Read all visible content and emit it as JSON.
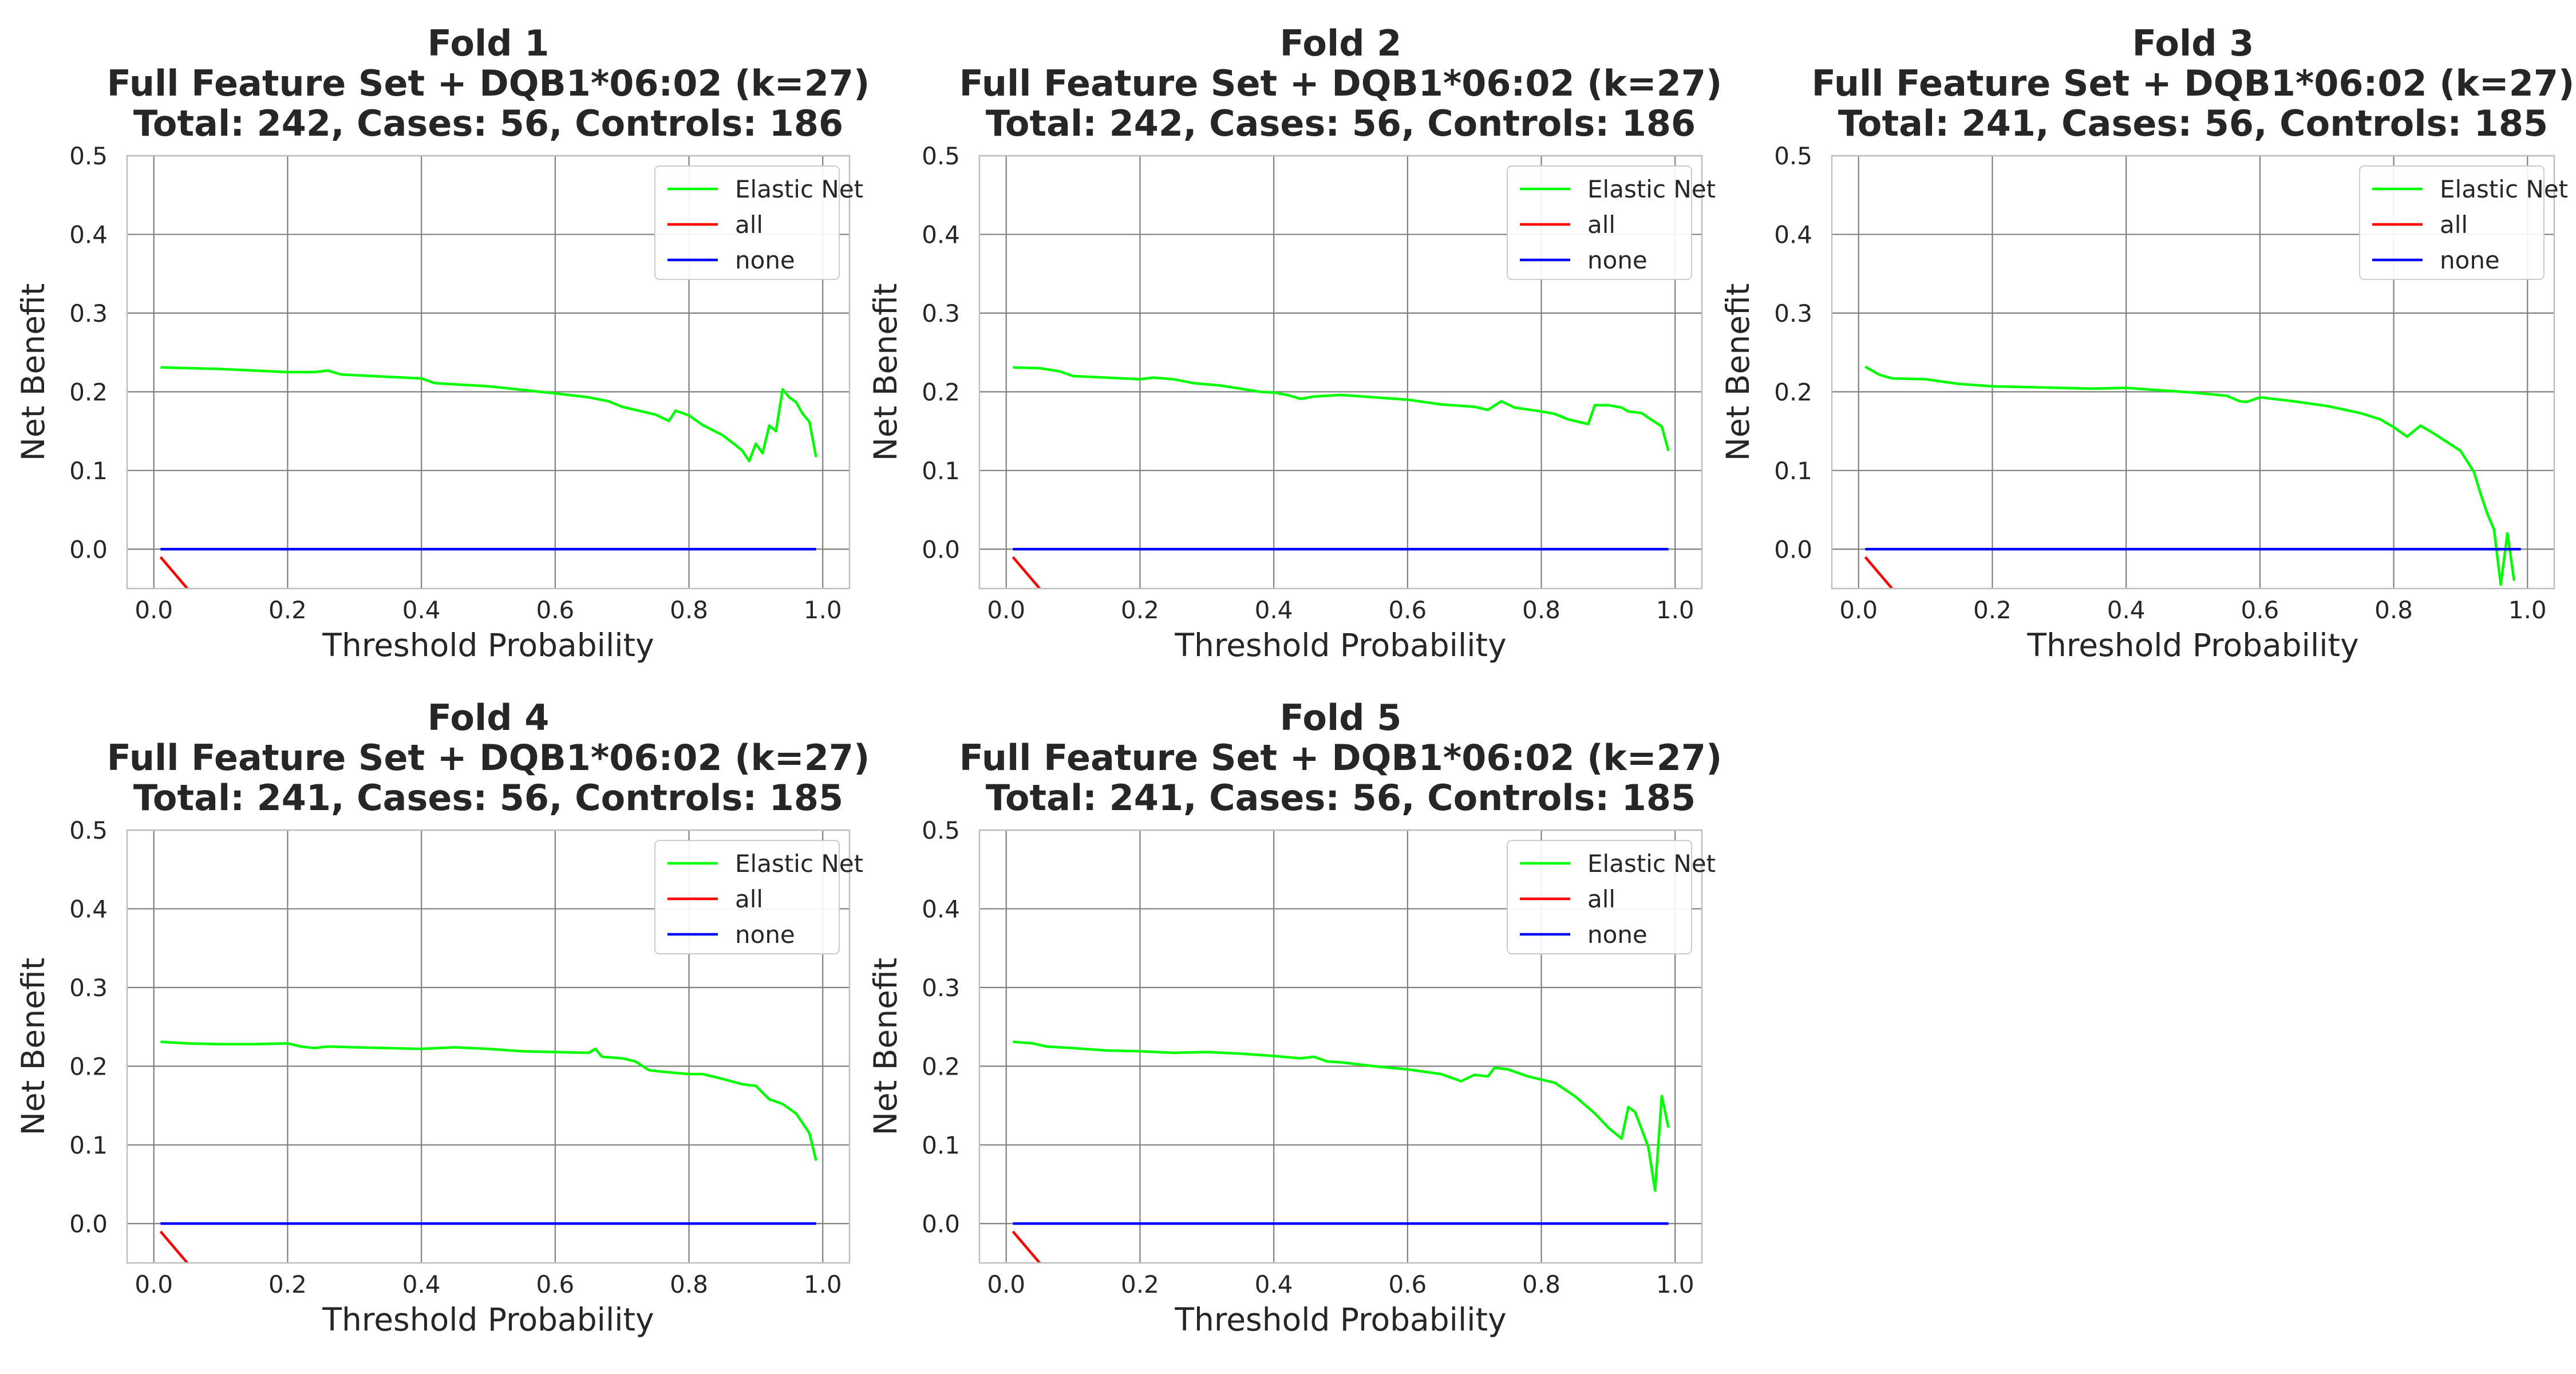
{
  "chart_data": [
    {
      "type": "line",
      "title_lines": [
        "Fold 1",
        "Full Feature Set + DQB1*06:02  (k=27)",
        "Total: 242, Cases: 56, Controls: 186"
      ],
      "xlabel": "Threshold Probability",
      "ylabel": "Net Benefit",
      "xlim": [
        -0.04,
        1.04
      ],
      "ylim": [
        -0.05,
        0.5
      ],
      "xticks": [
        "0.0",
        "0.2",
        "0.4",
        "0.6",
        "0.8",
        "1.0"
      ],
      "yticks": [
        "0.0",
        "0.1",
        "0.2",
        "0.3",
        "0.4",
        "0.5"
      ],
      "grid": true,
      "legend_position": "top-right",
      "series": [
        {
          "name": "Elastic Net",
          "color": "#00ff00",
          "x": [
            0.01,
            0.1,
            0.2,
            0.24,
            0.26,
            0.28,
            0.35,
            0.4,
            0.42,
            0.5,
            0.6,
            0.65,
            0.68,
            0.7,
            0.75,
            0.77,
            0.78,
            0.8,
            0.82,
            0.85,
            0.87,
            0.88,
            0.89,
            0.9,
            0.91,
            0.92,
            0.93,
            0.94,
            0.95,
            0.96,
            0.97,
            0.98,
            0.99
          ],
          "y": [
            0.231,
            0.229,
            0.225,
            0.225,
            0.227,
            0.222,
            0.219,
            0.217,
            0.211,
            0.207,
            0.198,
            0.193,
            0.188,
            0.181,
            0.171,
            0.163,
            0.176,
            0.17,
            0.158,
            0.145,
            0.132,
            0.125,
            0.112,
            0.134,
            0.122,
            0.157,
            0.15,
            0.203,
            0.193,
            0.187,
            0.172,
            0.162,
            0.117
          ]
        },
        {
          "name": "all",
          "color": "#ff0000",
          "x": [
            0.01,
            0.05
          ],
          "y": [
            -0.01,
            -0.05
          ]
        },
        {
          "name": "none",
          "color": "#0000ff",
          "x": [
            0.01,
            0.99
          ],
          "y": [
            0.0,
            0.0
          ]
        }
      ]
    },
    {
      "type": "line",
      "title_lines": [
        "Fold 2",
        "Full Feature Set + DQB1*06:02  (k=27)",
        "Total: 242, Cases: 56, Controls: 186"
      ],
      "xlabel": "Threshold Probability",
      "ylabel": "Net Benefit",
      "xlim": [
        -0.04,
        1.04
      ],
      "ylim": [
        -0.05,
        0.5
      ],
      "xticks": [
        "0.0",
        "0.2",
        "0.4",
        "0.6",
        "0.8",
        "1.0"
      ],
      "yticks": [
        "0.0",
        "0.1",
        "0.2",
        "0.3",
        "0.4",
        "0.5"
      ],
      "grid": true,
      "legend_position": "top-right",
      "series": [
        {
          "name": "Elastic Net",
          "color": "#00ff00",
          "x": [
            0.01,
            0.05,
            0.08,
            0.1,
            0.15,
            0.2,
            0.22,
            0.25,
            0.28,
            0.32,
            0.35,
            0.38,
            0.4,
            0.42,
            0.44,
            0.46,
            0.5,
            0.55,
            0.6,
            0.65,
            0.7,
            0.72,
            0.74,
            0.76,
            0.8,
            0.82,
            0.84,
            0.86,
            0.87,
            0.88,
            0.9,
            0.92,
            0.93,
            0.95,
            0.96,
            0.98,
            0.99
          ],
          "y": [
            0.231,
            0.23,
            0.226,
            0.22,
            0.218,
            0.216,
            0.218,
            0.216,
            0.211,
            0.208,
            0.204,
            0.2,
            0.199,
            0.196,
            0.191,
            0.194,
            0.196,
            0.193,
            0.19,
            0.184,
            0.181,
            0.177,
            0.188,
            0.18,
            0.175,
            0.172,
            0.165,
            0.161,
            0.159,
            0.183,
            0.183,
            0.18,
            0.175,
            0.173,
            0.167,
            0.156,
            0.125
          ]
        },
        {
          "name": "all",
          "color": "#ff0000",
          "x": [
            0.01,
            0.05
          ],
          "y": [
            -0.01,
            -0.05
          ]
        },
        {
          "name": "none",
          "color": "#0000ff",
          "x": [
            0.01,
            0.99
          ],
          "y": [
            0.0,
            0.0
          ]
        }
      ]
    },
    {
      "type": "line",
      "title_lines": [
        "Fold 3",
        "Full Feature Set + DQB1*06:02  (k=27)",
        "Total: 241, Cases: 56, Controls: 185"
      ],
      "xlabel": "Threshold Probability",
      "ylabel": "Net Benefit",
      "xlim": [
        -0.04,
        1.04
      ],
      "ylim": [
        -0.05,
        0.5
      ],
      "xticks": [
        "0.0",
        "0.2",
        "0.4",
        "0.6",
        "0.8",
        "1.0"
      ],
      "yticks": [
        "0.0",
        "0.1",
        "0.2",
        "0.3",
        "0.4",
        "0.5"
      ],
      "grid": true,
      "legend_position": "top-right",
      "series": [
        {
          "name": "Elastic Net",
          "color": "#00ff00",
          "x": [
            0.01,
            0.03,
            0.05,
            0.1,
            0.15,
            0.2,
            0.25,
            0.3,
            0.35,
            0.4,
            0.45,
            0.5,
            0.55,
            0.57,
            0.58,
            0.6,
            0.65,
            0.7,
            0.75,
            0.78,
            0.8,
            0.82,
            0.84,
            0.86,
            0.88,
            0.9,
            0.92,
            0.93,
            0.94,
            0.95,
            0.96,
            0.97,
            0.98
          ],
          "y": [
            0.232,
            0.222,
            0.217,
            0.216,
            0.21,
            0.207,
            0.206,
            0.205,
            0.204,
            0.205,
            0.202,
            0.199,
            0.195,
            0.188,
            0.187,
            0.193,
            0.188,
            0.182,
            0.173,
            0.165,
            0.155,
            0.143,
            0.157,
            0.147,
            0.136,
            0.125,
            0.098,
            0.07,
            0.045,
            0.025,
            -0.045,
            0.02,
            -0.04
          ]
        },
        {
          "name": "all",
          "color": "#ff0000",
          "x": [
            0.01,
            0.05
          ],
          "y": [
            -0.01,
            -0.05
          ]
        },
        {
          "name": "none",
          "color": "#0000ff",
          "x": [
            0.01,
            0.99
          ],
          "y": [
            0.0,
            0.0
          ]
        }
      ]
    },
    {
      "type": "line",
      "title_lines": [
        "Fold 4",
        "Full Feature Set + DQB1*06:02  (k=27)",
        "Total: 241, Cases: 56, Controls: 185"
      ],
      "xlabel": "Threshold Probability",
      "ylabel": "Net Benefit",
      "xlim": [
        -0.04,
        1.04
      ],
      "ylim": [
        -0.05,
        0.5
      ],
      "xticks": [
        "0.0",
        "0.2",
        "0.4",
        "0.6",
        "0.8",
        "1.0"
      ],
      "yticks": [
        "0.0",
        "0.1",
        "0.2",
        "0.3",
        "0.4",
        "0.5"
      ],
      "grid": true,
      "legend_position": "top-right",
      "series": [
        {
          "name": "Elastic Net",
          "color": "#00ff00",
          "x": [
            0.01,
            0.05,
            0.1,
            0.15,
            0.2,
            0.22,
            0.24,
            0.26,
            0.3,
            0.35,
            0.4,
            0.45,
            0.5,
            0.55,
            0.6,
            0.65,
            0.66,
            0.67,
            0.7,
            0.72,
            0.74,
            0.76,
            0.8,
            0.82,
            0.85,
            0.88,
            0.9,
            0.92,
            0.94,
            0.96,
            0.98,
            0.99
          ],
          "y": [
            0.231,
            0.229,
            0.228,
            0.228,
            0.229,
            0.225,
            0.223,
            0.225,
            0.224,
            0.223,
            0.222,
            0.224,
            0.222,
            0.219,
            0.218,
            0.217,
            0.222,
            0.212,
            0.21,
            0.206,
            0.195,
            0.193,
            0.19,
            0.19,
            0.184,
            0.177,
            0.175,
            0.158,
            0.152,
            0.14,
            0.115,
            0.08
          ]
        },
        {
          "name": "all",
          "color": "#ff0000",
          "x": [
            0.01,
            0.05
          ],
          "y": [
            -0.01,
            -0.05
          ]
        },
        {
          "name": "none",
          "color": "#0000ff",
          "x": [
            0.01,
            0.99
          ],
          "y": [
            0.0,
            0.0
          ]
        }
      ]
    },
    {
      "type": "line",
      "title_lines": [
        "Fold 5",
        "Full Feature Set + DQB1*06:02  (k=27)",
        "Total: 241, Cases: 56, Controls: 185"
      ],
      "xlabel": "Threshold Probability",
      "ylabel": "Net Benefit",
      "xlim": [
        -0.04,
        1.04
      ],
      "ylim": [
        -0.05,
        0.5
      ],
      "xticks": [
        "0.0",
        "0.2",
        "0.4",
        "0.6",
        "0.8",
        "1.0"
      ],
      "yticks": [
        "0.0",
        "0.1",
        "0.2",
        "0.3",
        "0.4",
        "0.5"
      ],
      "grid": true,
      "legend_position": "top-right",
      "series": [
        {
          "name": "Elastic Net",
          "color": "#00ff00",
          "x": [
            0.01,
            0.04,
            0.06,
            0.1,
            0.15,
            0.2,
            0.25,
            0.3,
            0.35,
            0.4,
            0.44,
            0.46,
            0.48,
            0.5,
            0.55,
            0.6,
            0.65,
            0.68,
            0.7,
            0.72,
            0.73,
            0.75,
            0.78,
            0.8,
            0.82,
            0.85,
            0.88,
            0.9,
            0.92,
            0.93,
            0.94,
            0.95,
            0.96,
            0.97,
            0.98,
            0.99
          ],
          "y": [
            0.231,
            0.229,
            0.225,
            0.223,
            0.22,
            0.219,
            0.217,
            0.218,
            0.216,
            0.213,
            0.21,
            0.212,
            0.206,
            0.205,
            0.2,
            0.196,
            0.19,
            0.181,
            0.189,
            0.187,
            0.198,
            0.196,
            0.187,
            0.183,
            0.179,
            0.162,
            0.14,
            0.122,
            0.108,
            0.148,
            0.142,
            0.12,
            0.097,
            0.042,
            0.162,
            0.122
          ]
        },
        {
          "name": "all",
          "color": "#ff0000",
          "x": [
            0.01,
            0.05
          ],
          "y": [
            -0.01,
            -0.05
          ]
        },
        {
          "name": "none",
          "color": "#0000ff",
          "x": [
            0.01,
            0.99
          ],
          "y": [
            0.0,
            0.0
          ]
        }
      ]
    }
  ]
}
